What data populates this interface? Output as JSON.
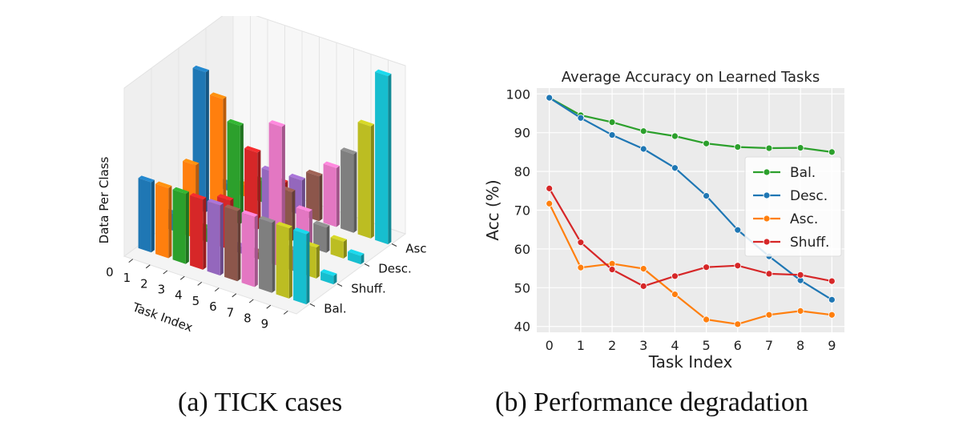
{
  "captions": {
    "a": "(a) TICK cases",
    "b": "(b) Performance degradation"
  },
  "colors": {
    "Bal.": "#2ca02c",
    "Desc.": "#1f77b4",
    "Asc.": "#ff7f0e",
    "Shuff.": "#d62728",
    "tab10": [
      "#1f77b4",
      "#ff7f0e",
      "#2ca02c",
      "#d62728",
      "#9467bd",
      "#8c564b",
      "#e377c2",
      "#7f7f7f",
      "#bcbd22",
      "#17becf"
    ]
  },
  "chart_data": [
    {
      "type": "bar3d",
      "title": "",
      "xlabel": "Task Index",
      "zlabel": "Data Per Class",
      "categories": [
        "0",
        "1",
        "2",
        "3",
        "4",
        "5",
        "6",
        "7",
        "8",
        "9"
      ],
      "depth_categories": [
        "Bal.",
        "Shuff.",
        "Desc.",
        "Asc"
      ],
      "series": [
        {
          "name": "Bal.",
          "values": [
            5,
            5,
            5,
            5,
            5,
            5,
            5,
            5,
            5,
            5
          ]
        },
        {
          "name": "Shuff.",
          "values": [
            1.2,
            5.2,
            1,
            3.5,
            0.5,
            0.5,
            10,
            1.5,
            2.2,
            0.6
          ]
        },
        {
          "name": "Desc.",
          "values": [
            10,
            8.5,
            7,
            5.5,
            4.5,
            3.5,
            2.5,
            1.8,
            1.2,
            0.6
          ]
        },
        {
          "name": "Asc",
          "values": [
            0.5,
            0.8,
            1.5,
            1.9,
            2.5,
            3.2,
            4.2,
            5.6,
            8,
            12
          ]
        }
      ],
      "zlim": [
        0,
        12
      ],
      "grid": true
    },
    {
      "type": "line",
      "title": "Average Accuracy on Learned Tasks",
      "xlabel": "Task Index",
      "ylabel": "Acc (%)",
      "x": [
        0,
        1,
        2,
        3,
        4,
        5,
        6,
        7,
        8,
        9
      ],
      "xticks": [
        "0",
        "1",
        "2",
        "3",
        "4",
        "5",
        "6",
        "7",
        "8",
        "9"
      ],
      "yticks": [
        "40",
        "50",
        "60",
        "70",
        "80",
        "90",
        "100"
      ],
      "ylim": [
        38.5,
        101.5
      ],
      "xlim": [
        -0.4,
        9.4
      ],
      "grid": true,
      "legend_position": "center-right",
      "series": [
        {
          "name": "Bal.",
          "values": [
            99,
            94.5,
            92.7,
            90.4,
            89.1,
            87.2,
            86.3,
            86.0,
            86.1,
            85.0
          ]
        },
        {
          "name": "Desc.",
          "values": [
            99,
            93.8,
            89.4,
            85.8,
            80.9,
            73.7,
            64.9,
            58.1,
            51.9,
            46.9
          ]
        },
        {
          "name": "Asc.",
          "values": [
            71.7,
            55.2,
            56.2,
            54.9,
            48.3,
            41.8,
            40.6,
            43.0,
            44.0,
            43.0
          ]
        },
        {
          "name": "Shuff.",
          "values": [
            75.6,
            61.7,
            54.7,
            50.4,
            53.0,
            55.3,
            55.7,
            53.6,
            53.3,
            51.7
          ]
        }
      ]
    }
  ]
}
